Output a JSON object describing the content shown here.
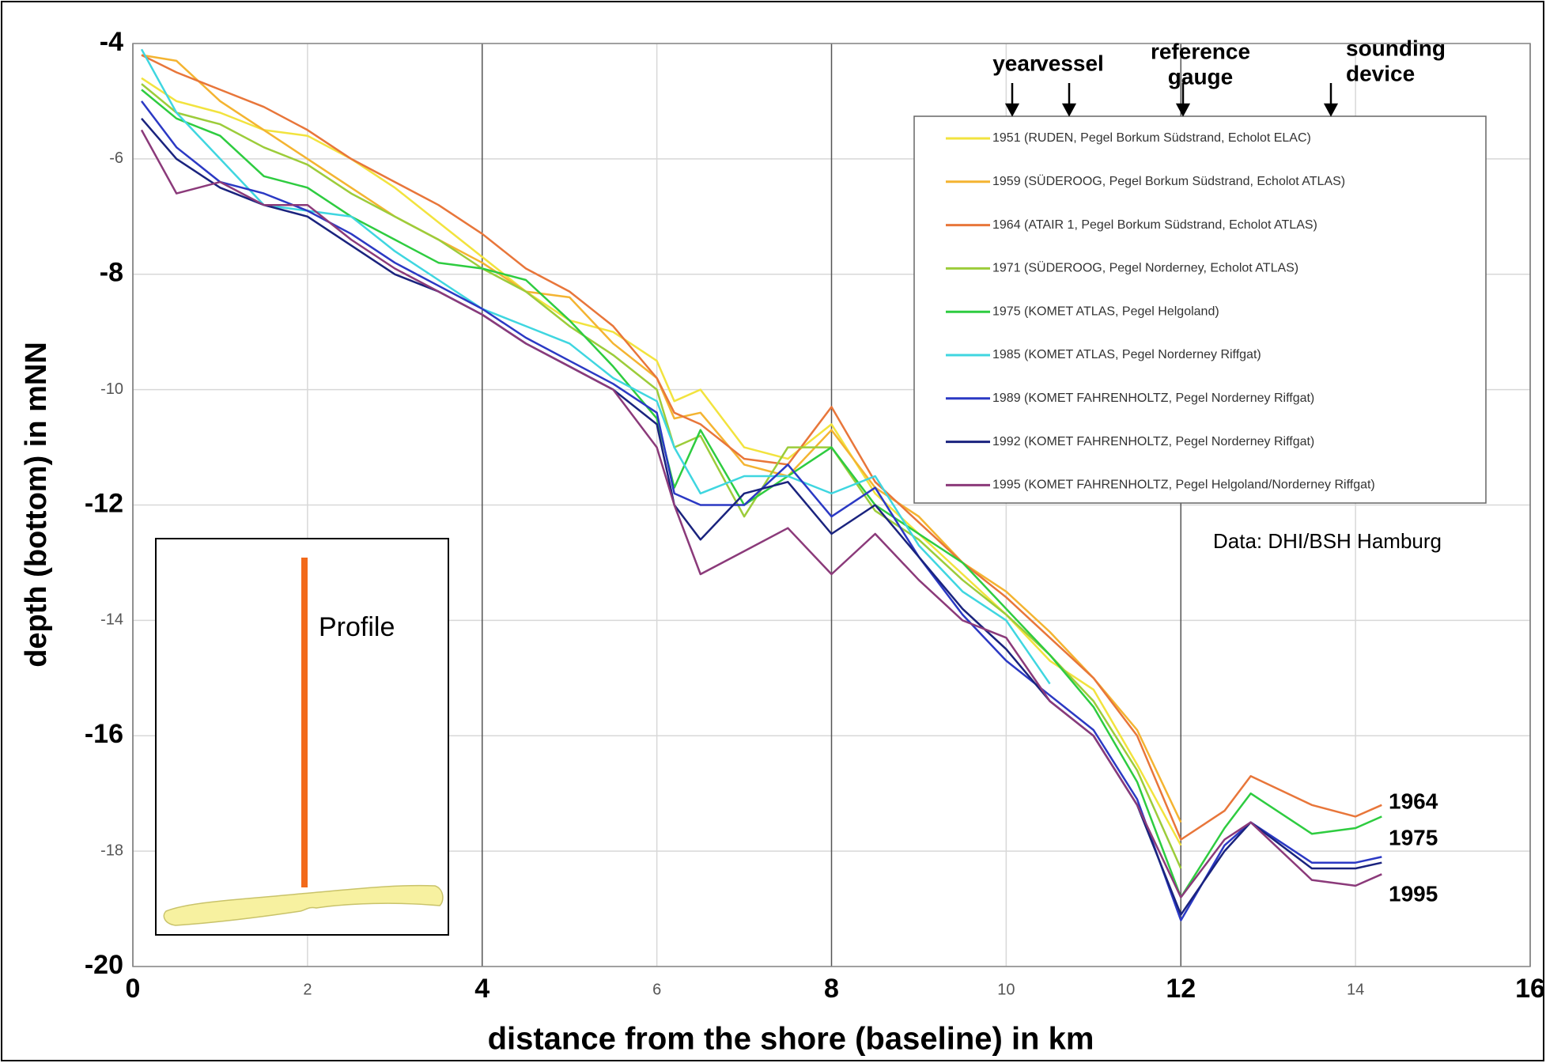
{
  "chart_data": {
    "type": "line",
    "x_label": "distance from the shore (baseline) in km",
    "y_label": "depth (bottom) in mNN",
    "xlim": [
      0,
      16
    ],
    "ylim": [
      -20,
      -4
    ],
    "xticks": [
      0,
      2,
      4,
      6,
      8,
      10,
      12,
      14,
      16
    ],
    "yticks": [
      -4,
      -6,
      -8,
      -10,
      -12,
      -14,
      -16,
      -18,
      -20
    ],
    "grid": true,
    "x": [
      0.1,
      0.5,
      1,
      1.5,
      2,
      2.5,
      3,
      3.5,
      4,
      4.5,
      5,
      5.5,
      6,
      6.2,
      6.5,
      7,
      7.5,
      8,
      8.5,
      9,
      9.5,
      10,
      10.5,
      11,
      11.5,
      12,
      12.5,
      12.8,
      13.5,
      14,
      14.3
    ],
    "series": [
      {
        "name": "1951 (RUDEN, Pegel Borkum Südstrand, Echolot ELAC)",
        "color": "#f2e33e",
        "values": [
          -4.6,
          -5.0,
          -5.2,
          -5.5,
          -5.6,
          -6.0,
          -6.5,
          -7.1,
          -7.7,
          -8.3,
          -8.8,
          -9.0,
          -9.5,
          -10.2,
          -10.0,
          -11.0,
          -11.2,
          -10.6,
          -11.8,
          -12.5,
          -13.2,
          -13.9,
          -14.7,
          -15.2,
          -16.5,
          -17.9,
          null,
          null,
          null,
          null,
          null
        ]
      },
      {
        "name": "1959 (SÜDEROOG, Pegel Borkum Südstrand, Echolot ATLAS)",
        "color": "#f4b431",
        "values": [
          -4.2,
          -4.3,
          -5.0,
          -5.5,
          -6.0,
          -6.5,
          -7.0,
          -7.4,
          -7.8,
          -8.3,
          -8.4,
          -9.2,
          -9.8,
          -10.5,
          -10.4,
          -11.3,
          -11.5,
          -10.7,
          -11.7,
          -12.2,
          -13.0,
          -13.5,
          -14.2,
          -15.0,
          -15.9,
          -17.5,
          null,
          null,
          null,
          null,
          null
        ]
      },
      {
        "name": "1964 (ATAIR 1, Pegel Borkum Südstrand, Echolot ATLAS)",
        "color": "#e8763a",
        "values": [
          -4.2,
          -4.5,
          -4.8,
          -5.1,
          -5.5,
          -6.0,
          -6.4,
          -6.8,
          -7.3,
          -7.9,
          -8.3,
          -8.9,
          -9.8,
          -10.4,
          -10.6,
          -11.2,
          -11.3,
          -10.3,
          -11.6,
          -12.3,
          -13.0,
          -13.6,
          -14.3,
          -15.0,
          -16.0,
          -17.8,
          -17.3,
          -16.7,
          -17.2,
          -17.4,
          -17.2
        ]
      },
      {
        "name": "1971 (SÜDEROOG, Pegel Norderney, Echolot ATLAS)",
        "color": "#9ccc3a",
        "values": [
          -4.7,
          -5.2,
          -5.4,
          -5.8,
          -6.1,
          -6.6,
          -7.0,
          -7.4,
          -7.9,
          -8.3,
          -8.9,
          -9.4,
          -10.0,
          -11.0,
          -10.8,
          -12.2,
          -11.0,
          -11.0,
          -12.1,
          -12.6,
          -13.3,
          -13.9,
          -14.6,
          -15.4,
          -16.6,
          -18.3,
          null,
          null,
          null,
          null,
          null
        ]
      },
      {
        "name": "1975 (KOMET ATLAS, Pegel Helgoland)",
        "color": "#2ecc40",
        "values": [
          -4.8,
          -5.3,
          -5.6,
          -6.3,
          -6.5,
          -7.0,
          -7.4,
          -7.8,
          -7.9,
          -8.1,
          -8.8,
          -9.6,
          -10.5,
          -11.7,
          -10.7,
          -12.0,
          -11.5,
          -11.0,
          -12.0,
          -12.5,
          -13.0,
          -13.8,
          -14.6,
          -15.5,
          -16.8,
          -18.8,
          -17.6,
          -17.0,
          -17.7,
          -17.6,
          -17.4
        ]
      },
      {
        "name": "1985 (KOMET ATLAS, Pegel Norderney Riffgat)",
        "color": "#3fd6e0",
        "values": [
          -4.1,
          -5.2,
          -6.0,
          -6.8,
          -6.9,
          -7.0,
          -7.6,
          -8.1,
          -8.6,
          -8.9,
          -9.2,
          -9.8,
          -10.2,
          -11.0,
          -11.8,
          -11.5,
          -11.5,
          -11.8,
          -11.5,
          -12.7,
          -13.5,
          -14.0,
          -15.1,
          null,
          null,
          null,
          null,
          null,
          null,
          null,
          null
        ]
      },
      {
        "name": "1989 (KOMET FAHRENHOLTZ, Pegel Norderney Riffgat)",
        "color": "#2b39c4",
        "values": [
          -5.0,
          -5.8,
          -6.4,
          -6.6,
          -6.9,
          -7.3,
          -7.8,
          -8.2,
          -8.6,
          -9.1,
          -9.5,
          -9.9,
          -10.4,
          -11.8,
          -12.0,
          -12.0,
          -11.3,
          -12.2,
          -11.7,
          -12.9,
          -13.9,
          -14.7,
          -15.3,
          -15.9,
          -17.1,
          -19.2,
          -17.9,
          -17.5,
          -18.2,
          -18.2,
          -18.1
        ]
      },
      {
        "name": "1992 (KOMET FAHRENHOLTZ, Pegel Norderney Riffgat)",
        "color": "#1a237e",
        "values": [
          -5.3,
          -6.0,
          -6.5,
          -6.8,
          -7.0,
          -7.5,
          -8.0,
          -8.3,
          -8.7,
          -9.2,
          -9.6,
          -10.0,
          -10.6,
          -12.0,
          -12.6,
          -11.8,
          -11.6,
          -12.5,
          -12.0,
          -12.9,
          -13.8,
          -14.5,
          -15.4,
          -16.0,
          -17.2,
          -19.1,
          -18.0,
          -17.5,
          -18.3,
          -18.3,
          -18.2
        ]
      },
      {
        "name": "1995 (KOMET FAHRENHOLTZ, Pegel Helgoland/Norderney Riffgat)",
        "color": "#8b3a7a",
        "values": [
          -5.5,
          -6.6,
          -6.4,
          -6.8,
          -6.8,
          -7.4,
          -7.9,
          -8.3,
          -8.7,
          -9.2,
          -9.6,
          -10.0,
          -11.0,
          -12.0,
          -13.2,
          -12.8,
          -12.4,
          -13.2,
          -12.5,
          -13.3,
          -14.0,
          -14.3,
          -15.4,
          -16.0,
          -17.2,
          -18.8,
          -17.8,
          -17.5,
          -18.5,
          -18.6,
          -18.4
        ]
      }
    ],
    "legend_header": {
      "year": "year",
      "vessel": "vessel",
      "reference_gauge": [
        "reference",
        "gauge"
      ],
      "sounding_device": [
        "sounding",
        "device"
      ]
    },
    "source": "Data: DHI/BSH Hamburg",
    "end_labels": [
      "1964",
      "1975",
      "1995"
    ],
    "inset_label": "Profile"
  }
}
